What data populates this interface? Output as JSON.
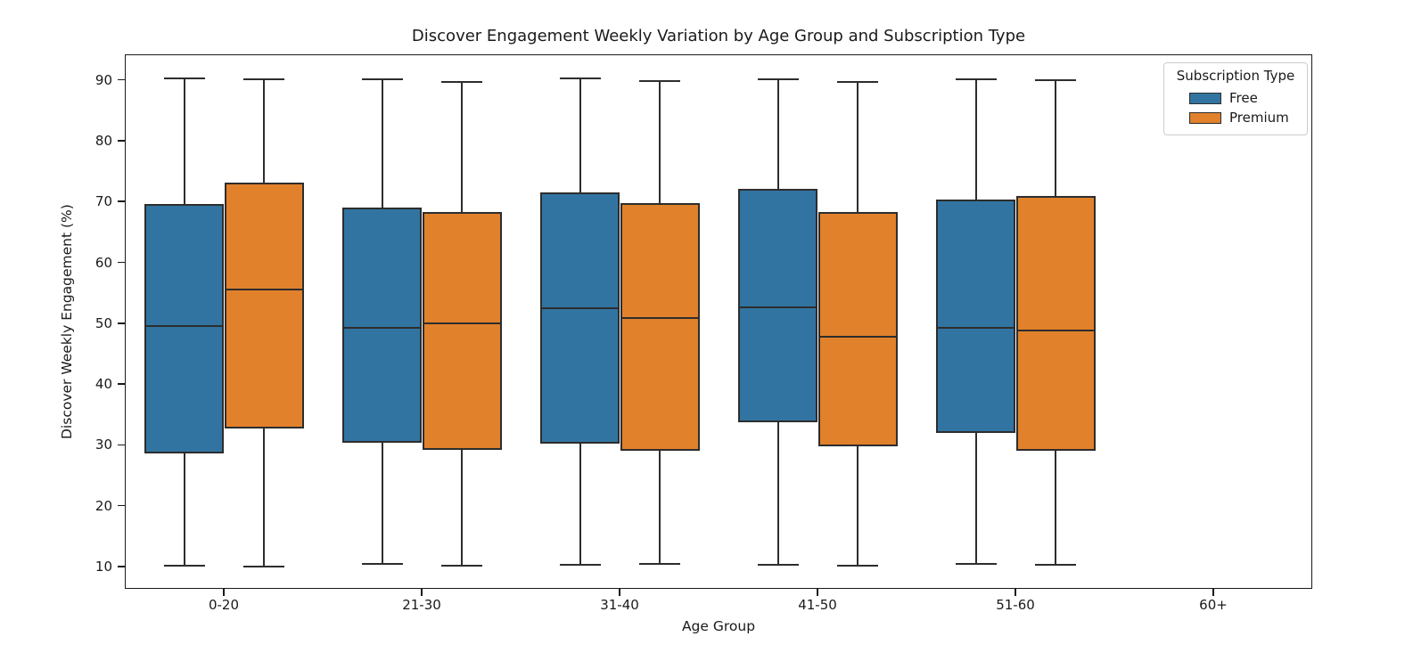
{
  "figure": {
    "title": "Discover Engagement Weekly Variation by Age Group and Subscription Type",
    "xlabel": "Age Group",
    "ylabel": "Discover Weekly Engagement (%)"
  },
  "legend": {
    "title": "Subscription Type",
    "items": [
      {
        "label": "Free",
        "color": "#3274A1"
      },
      {
        "label": "Premium",
        "color": "#E1812C"
      }
    ]
  },
  "colors": {
    "free_fill": "#3274A1",
    "premium_fill": "#E1812C",
    "box_edge": "#2d2d2d",
    "spine": "#1a1a1a",
    "text": "#1a1a1a"
  },
  "chart_data": {
    "type": "box",
    "title": "Discover Engagement Weekly Variation by Age Group and Subscription Type",
    "xlabel": "Age Group",
    "ylabel": "Discover Weekly Engagement (%)",
    "categories": [
      "0-20",
      "21-30",
      "31-40",
      "41-50",
      "51-60",
      "60+"
    ],
    "y_ticks": [
      10,
      20,
      30,
      40,
      50,
      60,
      70,
      80,
      90
    ],
    "ylim": [
      6.2,
      94.2
    ],
    "grid": false,
    "legend_position": "upper right",
    "series": [
      {
        "name": "Free",
        "color": "#3274A1",
        "boxes": [
          {
            "whisker_low": 10.1,
            "q1": 28.6,
            "median": 49.6,
            "q3": 69.6,
            "whisker_high": 90.2
          },
          {
            "whisker_low": 10.4,
            "q1": 30.4,
            "median": 49.3,
            "q3": 69.0,
            "whisker_high": 90.1
          },
          {
            "whisker_low": 10.3,
            "q1": 30.2,
            "median": 52.4,
            "q3": 71.5,
            "whisker_high": 90.2
          },
          {
            "whisker_low": 10.3,
            "q1": 33.7,
            "median": 52.6,
            "q3": 72.1,
            "whisker_high": 90.1
          },
          {
            "whisker_low": 10.4,
            "q1": 32.0,
            "median": 49.2,
            "q3": 70.3,
            "whisker_high": 90.1
          },
          null
        ]
      },
      {
        "name": "Premium",
        "color": "#E1812C",
        "boxes": [
          {
            "whisker_low": 10.0,
            "q1": 32.7,
            "median": 55.6,
            "q3": 73.1,
            "whisker_high": 90.1
          },
          {
            "whisker_low": 10.1,
            "q1": 29.2,
            "median": 49.9,
            "q3": 68.3,
            "whisker_high": 89.6
          },
          {
            "whisker_low": 10.4,
            "q1": 29.1,
            "median": 50.8,
            "q3": 69.7,
            "whisker_high": 89.8
          },
          {
            "whisker_low": 10.2,
            "q1": 29.8,
            "median": 47.8,
            "q3": 68.2,
            "whisker_high": 89.7
          },
          {
            "whisker_low": 10.3,
            "q1": 29.1,
            "median": 48.8,
            "q3": 70.9,
            "whisker_high": 89.9
          },
          null
        ]
      }
    ]
  }
}
